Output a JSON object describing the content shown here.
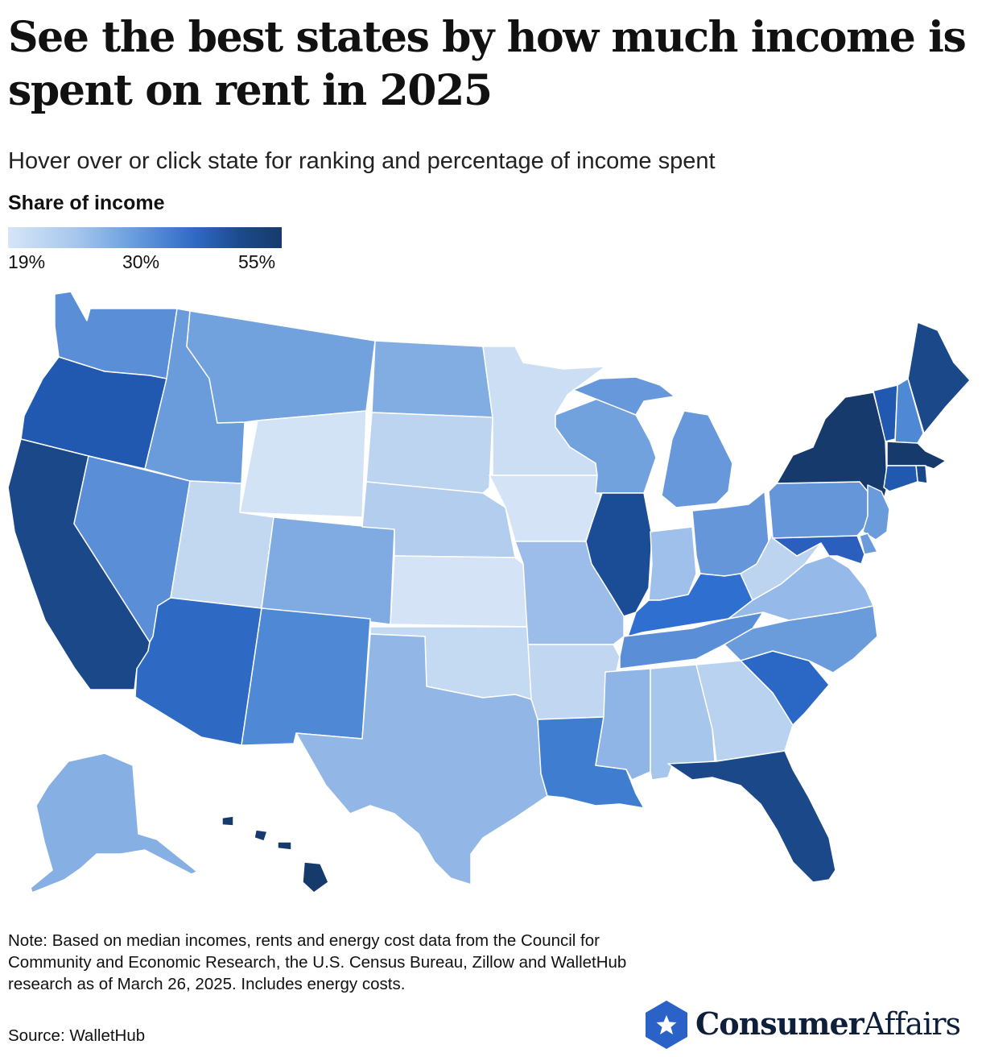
{
  "title": "See the best states by how much income is spent on rent in 2025",
  "subtitle": "Hover over or click state for ranking and percentage of income spent",
  "legend": {
    "title": "Share of income",
    "ticks": [
      "19%",
      "30%",
      "55%"
    ],
    "colors": [
      "#d6e6f8",
      "#a6c6ec",
      "#6b9fe0",
      "#2f6ac4",
      "#1c4a8c",
      "#163a6c"
    ]
  },
  "note": "Note: Based on median incomes, rents and energy cost data from the Council for Community and Economic Research, the U.S. Census Bureau, Zillow and WalletHub research as of March 26, 2025. Includes energy costs.",
  "source": "Source: WalletHub",
  "brand": {
    "name_bold": "Consumer",
    "name_regular": "Affairs",
    "icon": "star-hexagon-icon",
    "color": "#2b62c8"
  },
  "states": [
    {
      "id": "WA",
      "fill": "#5a8fd8"
    },
    {
      "id": "OR",
      "fill": "#2158b0"
    },
    {
      "id": "CA",
      "fill": "#1a4888"
    },
    {
      "id": "NV",
      "fill": "#5a8fd8"
    },
    {
      "id": "ID",
      "fill": "#6a9cdc"
    },
    {
      "id": "MT",
      "fill": "#72a2de"
    },
    {
      "id": "WY",
      "fill": "#d2e3f5"
    },
    {
      "id": "UT",
      "fill": "#c2d8f1"
    },
    {
      "id": "CO",
      "fill": "#80abe2"
    },
    {
      "id": "AZ",
      "fill": "#2e6ac4"
    },
    {
      "id": "NM",
      "fill": "#4f89d6"
    },
    {
      "id": "ND",
      "fill": "#82ade2"
    },
    {
      "id": "SD",
      "fill": "#bcd4f0"
    },
    {
      "id": "NE",
      "fill": "#b3cdee"
    },
    {
      "id": "KS",
      "fill": "#d4e4f6"
    },
    {
      "id": "OK",
      "fill": "#c4d9f2"
    },
    {
      "id": "TX",
      "fill": "#92b7e7"
    },
    {
      "id": "MN",
      "fill": "#cbdef4"
    },
    {
      "id": "IA",
      "fill": "#d4e4f6"
    },
    {
      "id": "MO",
      "fill": "#9cbde9"
    },
    {
      "id": "AR",
      "fill": "#c1d7f1"
    },
    {
      "id": "LA",
      "fill": "#3e7dd0"
    },
    {
      "id": "WI",
      "fill": "#72a2de"
    },
    {
      "id": "IL",
      "fill": "#1b4c96"
    },
    {
      "id": "MS",
      "fill": "#8fb4e6"
    },
    {
      "id": "MI",
      "fill": "#6798db"
    },
    {
      "id": "IN",
      "fill": "#9fc0ea"
    },
    {
      "id": "OH",
      "fill": "#6596da"
    },
    {
      "id": "KY",
      "fill": "#2f6fd0"
    },
    {
      "id": "TN",
      "fill": "#5a8fd8"
    },
    {
      "id": "AL",
      "fill": "#a7c6ec"
    },
    {
      "id": "GA",
      "fill": "#b9d2ef"
    },
    {
      "id": "FL",
      "fill": "#1a4888"
    },
    {
      "id": "SC",
      "fill": "#2b67c4"
    },
    {
      "id": "NC",
      "fill": "#6a9cdc"
    },
    {
      "id": "VA",
      "fill": "#95b9e8"
    },
    {
      "id": "WV",
      "fill": "#bcd4f0"
    },
    {
      "id": "PA",
      "fill": "#6596da"
    },
    {
      "id": "NY",
      "fill": "#163a6c"
    },
    {
      "id": "VT",
      "fill": "#2158b0"
    },
    {
      "id": "NH",
      "fill": "#4f89d6"
    },
    {
      "id": "ME",
      "fill": "#1a4888"
    },
    {
      "id": "MA",
      "fill": "#163a6c"
    },
    {
      "id": "RI",
      "fill": "#1a4888"
    },
    {
      "id": "CT",
      "fill": "#2158b0"
    },
    {
      "id": "NJ",
      "fill": "#6a9cdc"
    },
    {
      "id": "DE",
      "fill": "#6a9cdc"
    },
    {
      "id": "MD",
      "fill": "#2a5fbe"
    },
    {
      "id": "AK",
      "fill": "#86afe3"
    },
    {
      "id": "HI",
      "fill": "#163a6c"
    }
  ]
}
